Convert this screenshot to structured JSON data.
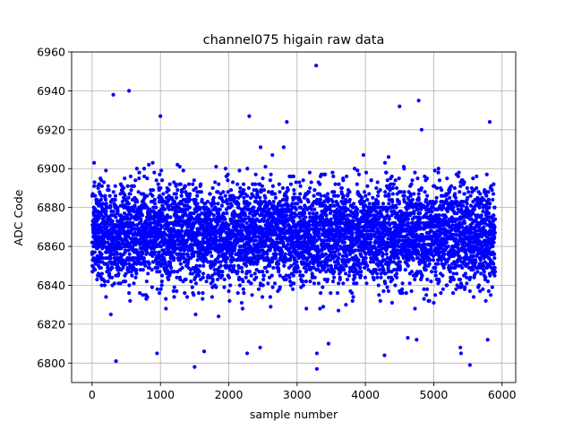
{
  "chart_data": {
    "type": "scatter",
    "title": "channel075 higain raw data",
    "xlabel": "sample number",
    "ylabel": "ADC Code",
    "xlim": [
      -300,
      6200
    ],
    "ylim": [
      6790,
      6960
    ],
    "xticks": [
      0,
      1000,
      2000,
      3000,
      4000,
      5000,
      6000
    ],
    "yticks": [
      6800,
      6820,
      6840,
      6860,
      6880,
      6900,
      6920,
      6940,
      6960
    ],
    "grid": true,
    "marker_color": "#0000ff",
    "n_samples": 5900,
    "typical_range": [
      6845,
      6885
    ],
    "center_value": 6866,
    "outliers": [
      {
        "x": 310,
        "y": 6938
      },
      {
        "x": 540,
        "y": 6940
      },
      {
        "x": 3280,
        "y": 6953
      },
      {
        "x": 1000,
        "y": 6927
      },
      {
        "x": 2300,
        "y": 6927
      },
      {
        "x": 2850,
        "y": 6924
      },
      {
        "x": 4780,
        "y": 6935
      },
      {
        "x": 4500,
        "y": 6932
      },
      {
        "x": 5820,
        "y": 6924
      },
      {
        "x": 350,
        "y": 6801
      },
      {
        "x": 1500,
        "y": 6798
      },
      {
        "x": 3290,
        "y": 6797
      },
      {
        "x": 5530,
        "y": 6799
      },
      {
        "x": 950,
        "y": 6805
      },
      {
        "x": 2270,
        "y": 6805
      },
      {
        "x": 4280,
        "y": 6804
      },
      {
        "x": 3290,
        "y": 6805
      },
      {
        "x": 3460,
        "y": 6810
      },
      {
        "x": 2460,
        "y": 6808
      },
      {
        "x": 1640,
        "y": 6806
      },
      {
        "x": 5400,
        "y": 6805
      },
      {
        "x": 5390,
        "y": 6808
      },
      {
        "x": 5790,
        "y": 6812
      },
      {
        "x": 4750,
        "y": 6812
      },
      {
        "x": 4620,
        "y": 6813
      }
    ]
  }
}
